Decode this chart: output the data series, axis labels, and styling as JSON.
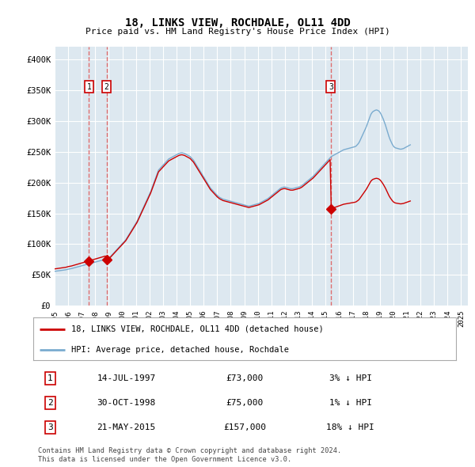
{
  "title": "18, LINKS VIEW, ROCHDALE, OL11 4DD",
  "subtitle": "Price paid vs. HM Land Registry's House Price Index (HPI)",
  "ylabel_ticks": [
    "£0",
    "£50K",
    "£100K",
    "£150K",
    "£200K",
    "£250K",
    "£300K",
    "£350K",
    "£400K"
  ],
  "ytick_values": [
    0,
    50000,
    100000,
    150000,
    200000,
    250000,
    300000,
    350000,
    400000
  ],
  "ylim": [
    0,
    420000
  ],
  "xlim_start": 1995.0,
  "xlim_end": 2025.5,
  "background_color": "#ffffff",
  "plot_bg_color": "#dde8f0",
  "grid_color": "#ffffff",
  "hpi_line_color": "#7aabcf",
  "price_line_color": "#cc0000",
  "sale_marker_color": "#cc0000",
  "dashed_line_color": "#e06060",
  "legend_label_price": "18, LINKS VIEW, ROCHDALE, OL11 4DD (detached house)",
  "legend_label_hpi": "HPI: Average price, detached house, Rochdale",
  "transactions": [
    {
      "num": 1,
      "date_x": 1997.54,
      "price": 73000,
      "label": "14-JUL-1997",
      "amount": "£73,000",
      "pct": "3% ↓ HPI"
    },
    {
      "num": 2,
      "date_x": 1998.83,
      "price": 75000,
      "label": "30-OCT-1998",
      "amount": "£75,000",
      "pct": "1% ↓ HPI"
    },
    {
      "num": 3,
      "date_x": 2015.38,
      "price": 157000,
      "label": "21-MAY-2015",
      "amount": "£157,000",
      "pct": "18% ↓ HPI"
    }
  ],
  "footnote1": "Contains HM Land Registry data © Crown copyright and database right 2024.",
  "footnote2": "This data is licensed under the Open Government Licence v3.0.",
  "hpi_monthly_y": [
    56000,
    56200,
    56500,
    56800,
    57000,
    57200,
    57500,
    57800,
    58000,
    58200,
    58500,
    59000,
    59500,
    59800,
    60200,
    60500,
    61000,
    61500,
    62000,
    62500,
    63000,
    63500,
    64000,
    64500,
    65000,
    65500,
    66000,
    66500,
    67000,
    67500,
    68000,
    68500,
    69000,
    69500,
    70000,
    70500,
    71000,
    71500,
    72000,
    72500,
    73000,
    73500,
    74000,
    74500,
    75000,
    75500,
    76000,
    76500,
    77500,
    79000,
    81000,
    83000,
    85000,
    87000,
    89000,
    91000,
    93000,
    95000,
    97000,
    99000,
    101000,
    103000,
    105000,
    107000,
    110000,
    113000,
    116000,
    119000,
    122000,
    125000,
    128000,
    131000,
    134000,
    137000,
    141000,
    145000,
    149000,
    153000,
    157000,
    161000,
    165000,
    169000,
    173000,
    177000,
    181000,
    185000,
    190000,
    195000,
    200000,
    205000,
    210000,
    215000,
    220000,
    222000,
    224000,
    226000,
    228000,
    230000,
    232000,
    234000,
    236000,
    238000,
    239000,
    240000,
    241000,
    242000,
    243000,
    244000,
    245000,
    246000,
    247000,
    247500,
    248000,
    248000,
    247500,
    247000,
    246000,
    245000,
    244000,
    243000,
    242000,
    240000,
    238000,
    236000,
    233000,
    230000,
    227000,
    224000,
    221000,
    218000,
    215000,
    212000,
    209000,
    206000,
    203000,
    200000,
    197000,
    194000,
    191000,
    189000,
    187000,
    185000,
    183000,
    181000,
    179000,
    177500,
    176000,
    175000,
    174000,
    173000,
    172500,
    172000,
    171500,
    171000,
    170500,
    170000,
    169500,
    169000,
    168500,
    168000,
    167500,
    167000,
    166500,
    166000,
    165500,
    165000,
    164500,
    164000,
    163500,
    163000,
    162500,
    162000,
    161500,
    162000,
    162500,
    163000,
    163500,
    164000,
    164500,
    165000,
    165500,
    166000,
    167000,
    168000,
    169000,
    170000,
    171000,
    172000,
    173000,
    174000,
    175500,
    177000,
    178500,
    180000,
    181500,
    183000,
    184500,
    186000,
    187500,
    189000,
    190500,
    191500,
    192000,
    192500,
    192500,
    192000,
    191500,
    191000,
    190500,
    190000,
    190000,
    190000,
    190500,
    191000,
    191500,
    192000,
    192500,
    193000,
    194000,
    195000,
    196500,
    198000,
    199500,
    201000,
    202500,
    204000,
    205500,
    207000,
    208500,
    210000,
    212000,
    214000,
    216000,
    218000,
    220000,
    222000,
    224000,
    226000,
    228000,
    230000,
    232000,
    234000,
    236000,
    238000,
    240000,
    242000,
    243000,
    244000,
    245000,
    246000,
    247000,
    248000,
    249000,
    250000,
    251000,
    252000,
    253000,
    253500,
    254000,
    254500,
    255000,
    255500,
    256000,
    256500,
    257000,
    257500,
    258000,
    259000,
    261000,
    263000,
    266000,
    270000,
    274000,
    278000,
    282000,
    286000,
    290000,
    295000,
    300000,
    305000,
    310000,
    313000,
    315000,
    316000,
    317000,
    317500,
    317000,
    316000,
    314000,
    311000,
    307000,
    303000,
    298000,
    293000,
    287000,
    281000,
    275000,
    270000,
    266000,
    262000,
    259000,
    257000,
    256000,
    255500,
    255000,
    254500,
    254000,
    254000,
    254500,
    255000,
    256000,
    257000,
    258000,
    259000,
    260000,
    261000
  ]
}
